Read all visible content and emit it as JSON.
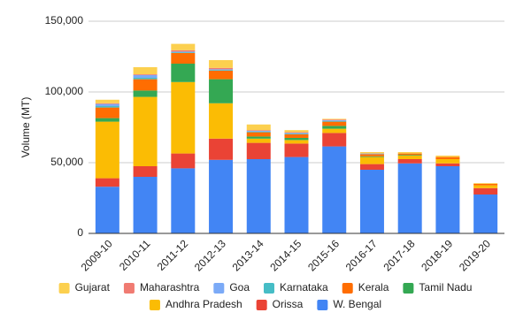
{
  "chart_data": {
    "type": "stacked_bar",
    "y_label": "Volume (MT)",
    "categories": [
      "2009-10",
      "2010-11",
      "2011-12",
      "2012-13",
      "2013-14",
      "2014-15",
      "2015-16",
      "2016-17",
      "2017-18",
      "2018-19",
      "2019-20"
    ],
    "series": [
      {
        "name": "Gujarat",
        "color": "#fcd04f",
        "values": [
          2500,
          5000,
          4500,
          5500,
          4000,
          1500,
          500,
          1000,
          1000,
          1000,
          500
        ]
      },
      {
        "name": "Maharashtra",
        "color": "#f07b72",
        "values": [
          500,
          500,
          1000,
          1000,
          500,
          500,
          500,
          0,
          0,
          0,
          0
        ]
      },
      {
        "name": "Goa",
        "color": "#7baaf7",
        "values": [
          1500,
          2000,
          500,
          500,
          500,
          500,
          500,
          500,
          0,
          0,
          0
        ]
      },
      {
        "name": "Karnataka",
        "color": "#46bdc6",
        "values": [
          1000,
          1000,
          500,
          500,
          500,
          500,
          500,
          0,
          0,
          0,
          0
        ]
      },
      {
        "name": "Kerala",
        "color": "#ff6d01",
        "values": [
          7500,
          8000,
          7500,
          6000,
          3000,
          2500,
          3000,
          1500,
          1000,
          1500,
          1000
        ]
      },
      {
        "name": "Tamil Nadu",
        "color": "#34a853",
        "values": [
          2500,
          4500,
          13000,
          17000,
          1500,
          1500,
          2000,
          500,
          500,
          0,
          0
        ]
      },
      {
        "name": "Andhra Pradesh",
        "color": "#fbbc04",
        "values": [
          40000,
          49000,
          50500,
          25000,
          3000,
          2500,
          3000,
          5000,
          2500,
          3000,
          2000
        ]
      },
      {
        "name": "Orissa",
        "color": "#ea4335",
        "values": [
          6000,
          7500,
          10500,
          15000,
          11500,
          9500,
          9500,
          4000,
          3000,
          2000,
          4500
        ]
      },
      {
        "name": "W. Bengal",
        "color": "#4285f4",
        "values": [
          33000,
          40000,
          46000,
          52000,
          52500,
          54000,
          61500,
          45000,
          49500,
          47500,
          27500
        ]
      }
    ],
    "ylim": [
      0,
      150000
    ],
    "yticks": [
      0,
      {
        "value": 50000,
        "label": "50,000"
      },
      {
        "value": 100000,
        "label": "100,000"
      },
      {
        "value": 150000,
        "label": "150,000"
      }
    ],
    "grid": true,
    "legend": "bottom"
  }
}
